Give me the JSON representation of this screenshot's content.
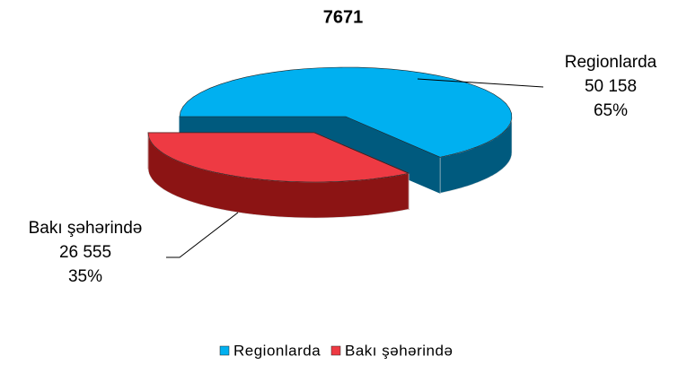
{
  "chart_data": {
    "type": "pie3d",
    "title": "7671",
    "categories": [
      "Regionlarda",
      "Bakı şəhərində"
    ],
    "values": [
      50158,
      26555
    ],
    "value_labels": [
      "50 158",
      "26 555"
    ],
    "percentages": [
      65,
      35
    ],
    "percentage_labels": [
      "65%",
      "35%"
    ],
    "colors": [
      "#00b0f0",
      "#ee3a43"
    ],
    "side_colors": [
      "#005a7e",
      "#8c1414"
    ],
    "legend": "bottom"
  }
}
